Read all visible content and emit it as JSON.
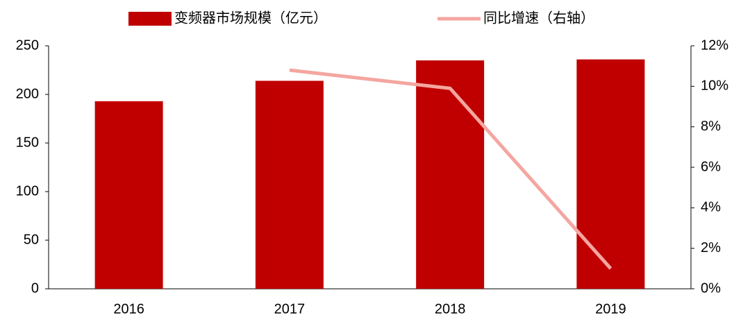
{
  "chart_data": {
    "type": "bar-line",
    "categories": [
      "2016",
      "2017",
      "2018",
      "2019"
    ],
    "series": [
      {
        "name": "变频器市场规模（亿元）",
        "type": "bar",
        "color": "#c00000",
        "values": [
          193,
          214,
          235,
          236
        ]
      },
      {
        "name": "同比增速（右轴）",
        "type": "line",
        "axis": "y2",
        "color": "#f4a6a0",
        "values": [
          null,
          10.8,
          9.9,
          1.0
        ]
      }
    ],
    "ylim": [
      0,
      250
    ],
    "yticks": [
      0,
      50,
      100,
      150,
      200,
      250
    ],
    "y2lim": [
      0,
      12
    ],
    "y2ticks": [
      {
        "value": 0,
        "label": "0%"
      },
      {
        "value": 2,
        "label": "2%"
      },
      {
        "value": 4,
        "label": "4%"
      },
      {
        "value": 6,
        "label": "6%"
      },
      {
        "value": 8,
        "label": "8%"
      },
      {
        "value": 10,
        "label": "10%"
      },
      {
        "value": 12,
        "label": "12%"
      }
    ],
    "legend": "top"
  }
}
